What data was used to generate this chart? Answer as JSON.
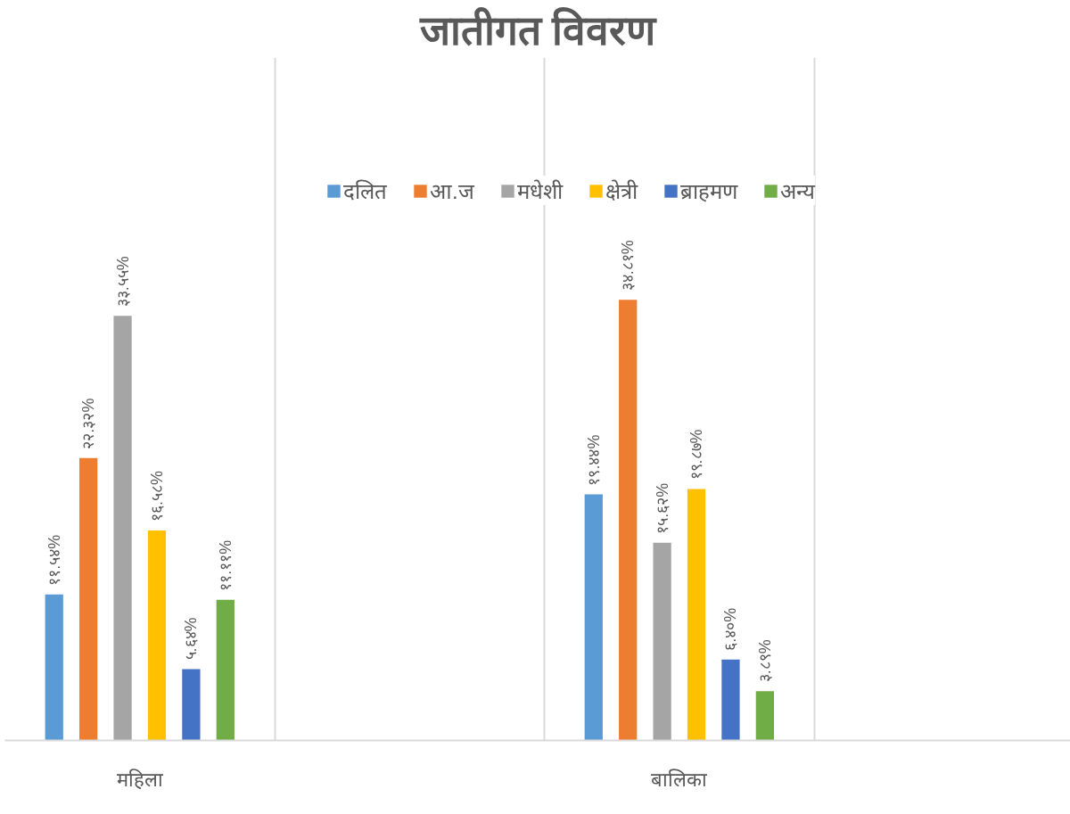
{
  "chart_data": {
    "type": "bar",
    "title": "जातीगत विवरण",
    "categories": [
      "महिला",
      null,
      "बालिका",
      null
    ],
    "series": [
      {
        "name": "दलित",
        "color": "#5b9bd5",
        "values": [
          11.54,
          null,
          19.44,
          null
        ],
        "value_labels": [
          "११.५४%",
          null,
          "१९.४४%",
          null
        ]
      },
      {
        "name": "आ.ज",
        "color": "#ed7d31",
        "values": [
          22.32,
          null,
          34.81,
          null
        ],
        "value_labels": [
          "२२.३२%",
          null,
          "३४.८१%",
          null
        ]
      },
      {
        "name": "मधेशी",
        "color": "#a5a5a5",
        "values": [
          33.55,
          null,
          15.62,
          null
        ],
        "value_labels": [
          "३३.५५%",
          null,
          "१५.६२%",
          null
        ]
      },
      {
        "name": "क्षेत्री",
        "color": "#ffc000",
        "values": [
          16.58,
          null,
          19.87,
          null
        ],
        "value_labels": [
          "१६.५८%",
          null,
          "१९.८७%",
          null
        ]
      },
      {
        "name": "ब्राहमण",
        "color": "#4472c4",
        "values": [
          5.64,
          null,
          6.4,
          null
        ],
        "value_labels": [
          "५.६४%",
          null,
          "६.४०%",
          null
        ]
      },
      {
        "name": "अन्य",
        "color": "#70ad47",
        "values": [
          11.11,
          null,
          3.89,
          null
        ],
        "value_labels": [
          "११.११%",
          null,
          "३.८९%",
          null
        ]
      }
    ],
    "grid": "x",
    "legend": "top"
  }
}
